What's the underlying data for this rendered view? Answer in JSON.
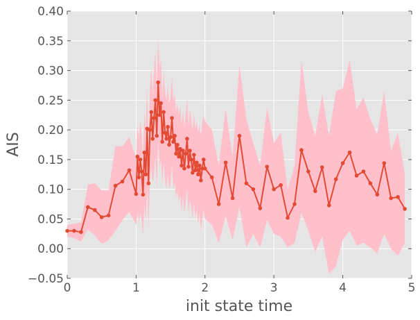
{
  "chart_data": {
    "type": "line",
    "title": "",
    "xlabel": "init state time",
    "ylabel": "AIS",
    "xlim": [
      0,
      5
    ],
    "ylim": [
      -0.05,
      0.4
    ],
    "grid": true,
    "legend": "none",
    "x_ticks": [
      0,
      1,
      2,
      3,
      4,
      5
    ],
    "x_tick_labels": [
      "0",
      "1",
      "2",
      "3",
      "4",
      "5"
    ],
    "y_ticks": [
      -0.05,
      0.0,
      0.05,
      0.1,
      0.15,
      0.2,
      0.25,
      0.3,
      0.35,
      0.4
    ],
    "y_tick_labels": [
      "−0.05",
      "0.00",
      "0.05",
      "0.10",
      "0.15",
      "0.20",
      "0.25",
      "0.30",
      "0.35",
      "0.40"
    ],
    "colors": {
      "background": "#e5e5e5",
      "grid": "#ffffff",
      "line": "#e24a33",
      "band": "#ffc0cb"
    },
    "series": [
      {
        "x": [
          0.0,
          0.1,
          0.2,
          0.3,
          0.4,
          0.5,
          0.6,
          0.7,
          0.8,
          0.9,
          1.0,
          1.02,
          1.04,
          1.06,
          1.08,
          1.1,
          1.12,
          1.14,
          1.16,
          1.18,
          1.2,
          1.22,
          1.24,
          1.26,
          1.28,
          1.3,
          1.32,
          1.34,
          1.36,
          1.38,
          1.4,
          1.42,
          1.44,
          1.46,
          1.48,
          1.5,
          1.52,
          1.54,
          1.56,
          1.58,
          1.6,
          1.62,
          1.64,
          1.66,
          1.68,
          1.7,
          1.72,
          1.74,
          1.76,
          1.78,
          1.8,
          1.82,
          1.84,
          1.86,
          1.88,
          1.9,
          1.92,
          1.94,
          1.96,
          1.98,
          2.0,
          2.1,
          2.2,
          2.3,
          2.4,
          2.5,
          2.6,
          2.7,
          2.8,
          2.9,
          3.0,
          3.1,
          3.2,
          3.3,
          3.4,
          3.5,
          3.6,
          3.7,
          3.8,
          3.9,
          4.0,
          4.1,
          4.2,
          4.3,
          4.4,
          4.5,
          4.6,
          4.7,
          4.8,
          4.9
        ],
        "y": [
          0.03,
          0.03,
          0.028,
          0.07,
          0.065,
          0.053,
          0.056,
          0.106,
          0.113,
          0.132,
          0.092,
          0.155,
          0.12,
          0.15,
          0.13,
          0.091,
          0.162,
          0.125,
          0.202,
          0.11,
          0.2,
          0.23,
          0.185,
          0.22,
          0.25,
          0.19,
          0.28,
          0.225,
          0.245,
          0.18,
          0.23,
          0.195,
          0.185,
          0.205,
          0.175,
          0.188,
          0.22,
          0.18,
          0.19,
          0.16,
          0.175,
          0.155,
          0.168,
          0.14,
          0.165,
          0.135,
          0.16,
          0.185,
          0.138,
          0.165,
          0.15,
          0.128,
          0.158,
          0.132,
          0.145,
          0.125,
          0.14,
          0.115,
          0.135,
          0.15,
          0.135,
          0.12,
          0.075,
          0.145,
          0.085,
          0.19,
          0.11,
          0.1,
          0.068,
          0.138,
          0.1,
          0.107,
          0.052,
          0.075,
          0.166,
          0.13,
          0.097,
          0.137,
          0.073,
          0.117,
          0.144,
          0.162,
          0.123,
          0.13,
          0.11,
          0.091,
          0.144,
          0.085,
          0.087,
          0.067
        ],
        "y_lower": [
          0.02,
          0.018,
          0.012,
          0.032,
          0.022,
          0.008,
          0.014,
          0.03,
          0.048,
          0.062,
          0.04,
          0.062,
          0.045,
          0.058,
          0.048,
          0.02,
          0.075,
          0.045,
          0.105,
          0.03,
          0.115,
          0.135,
          0.11,
          0.125,
          0.155,
          0.1,
          0.185,
          0.135,
          0.15,
          0.11,
          0.145,
          0.115,
          0.1,
          0.125,
          0.1,
          0.11,
          0.14,
          0.1,
          0.11,
          0.085,
          0.098,
          0.078,
          0.09,
          0.062,
          0.088,
          0.06,
          0.08,
          0.1,
          0.058,
          0.082,
          0.07,
          0.05,
          0.078,
          0.05,
          0.065,
          0.04,
          0.06,
          0.03,
          0.05,
          0.065,
          0.05,
          0.04,
          0.01,
          0.055,
          0.015,
          0.07,
          0.002,
          0.025,
          0.002,
          0.048,
          0.025,
          0.02,
          0.002,
          0.01,
          0.06,
          0.03,
          -0.005,
          0.02,
          -0.042,
          -0.03,
          0.015,
          0.03,
          0.005,
          0.01,
          0.002,
          -0.008,
          0.025,
          0.0,
          -0.012,
          0.01
        ],
        "y_upper": [
          0.04,
          0.042,
          0.044,
          0.108,
          0.11,
          0.098,
          0.098,
          0.173,
          0.172,
          0.188,
          0.152,
          0.21,
          0.185,
          0.218,
          0.195,
          0.15,
          0.23,
          0.2,
          0.272,
          0.17,
          0.272,
          0.305,
          0.26,
          0.3,
          0.335,
          0.27,
          0.355,
          0.305,
          0.32,
          0.255,
          0.3,
          0.265,
          0.25,
          0.275,
          0.245,
          0.255,
          0.29,
          0.25,
          0.26,
          0.23,
          0.245,
          0.225,
          0.24,
          0.208,
          0.232,
          0.205,
          0.228,
          0.255,
          0.208,
          0.235,
          0.22,
          0.198,
          0.228,
          0.202,
          0.215,
          0.195,
          0.21,
          0.19,
          0.212,
          0.225,
          0.215,
          0.2,
          0.14,
          0.236,
          0.155,
          0.31,
          0.218,
          0.178,
          0.14,
          0.238,
          0.178,
          0.195,
          0.1,
          0.14,
          0.318,
          0.23,
          0.19,
          0.26,
          0.19,
          0.265,
          0.27,
          0.318,
          0.235,
          0.255,
          0.218,
          0.192,
          0.265,
          0.165,
          0.195,
          0.125
        ]
      }
    ]
  }
}
